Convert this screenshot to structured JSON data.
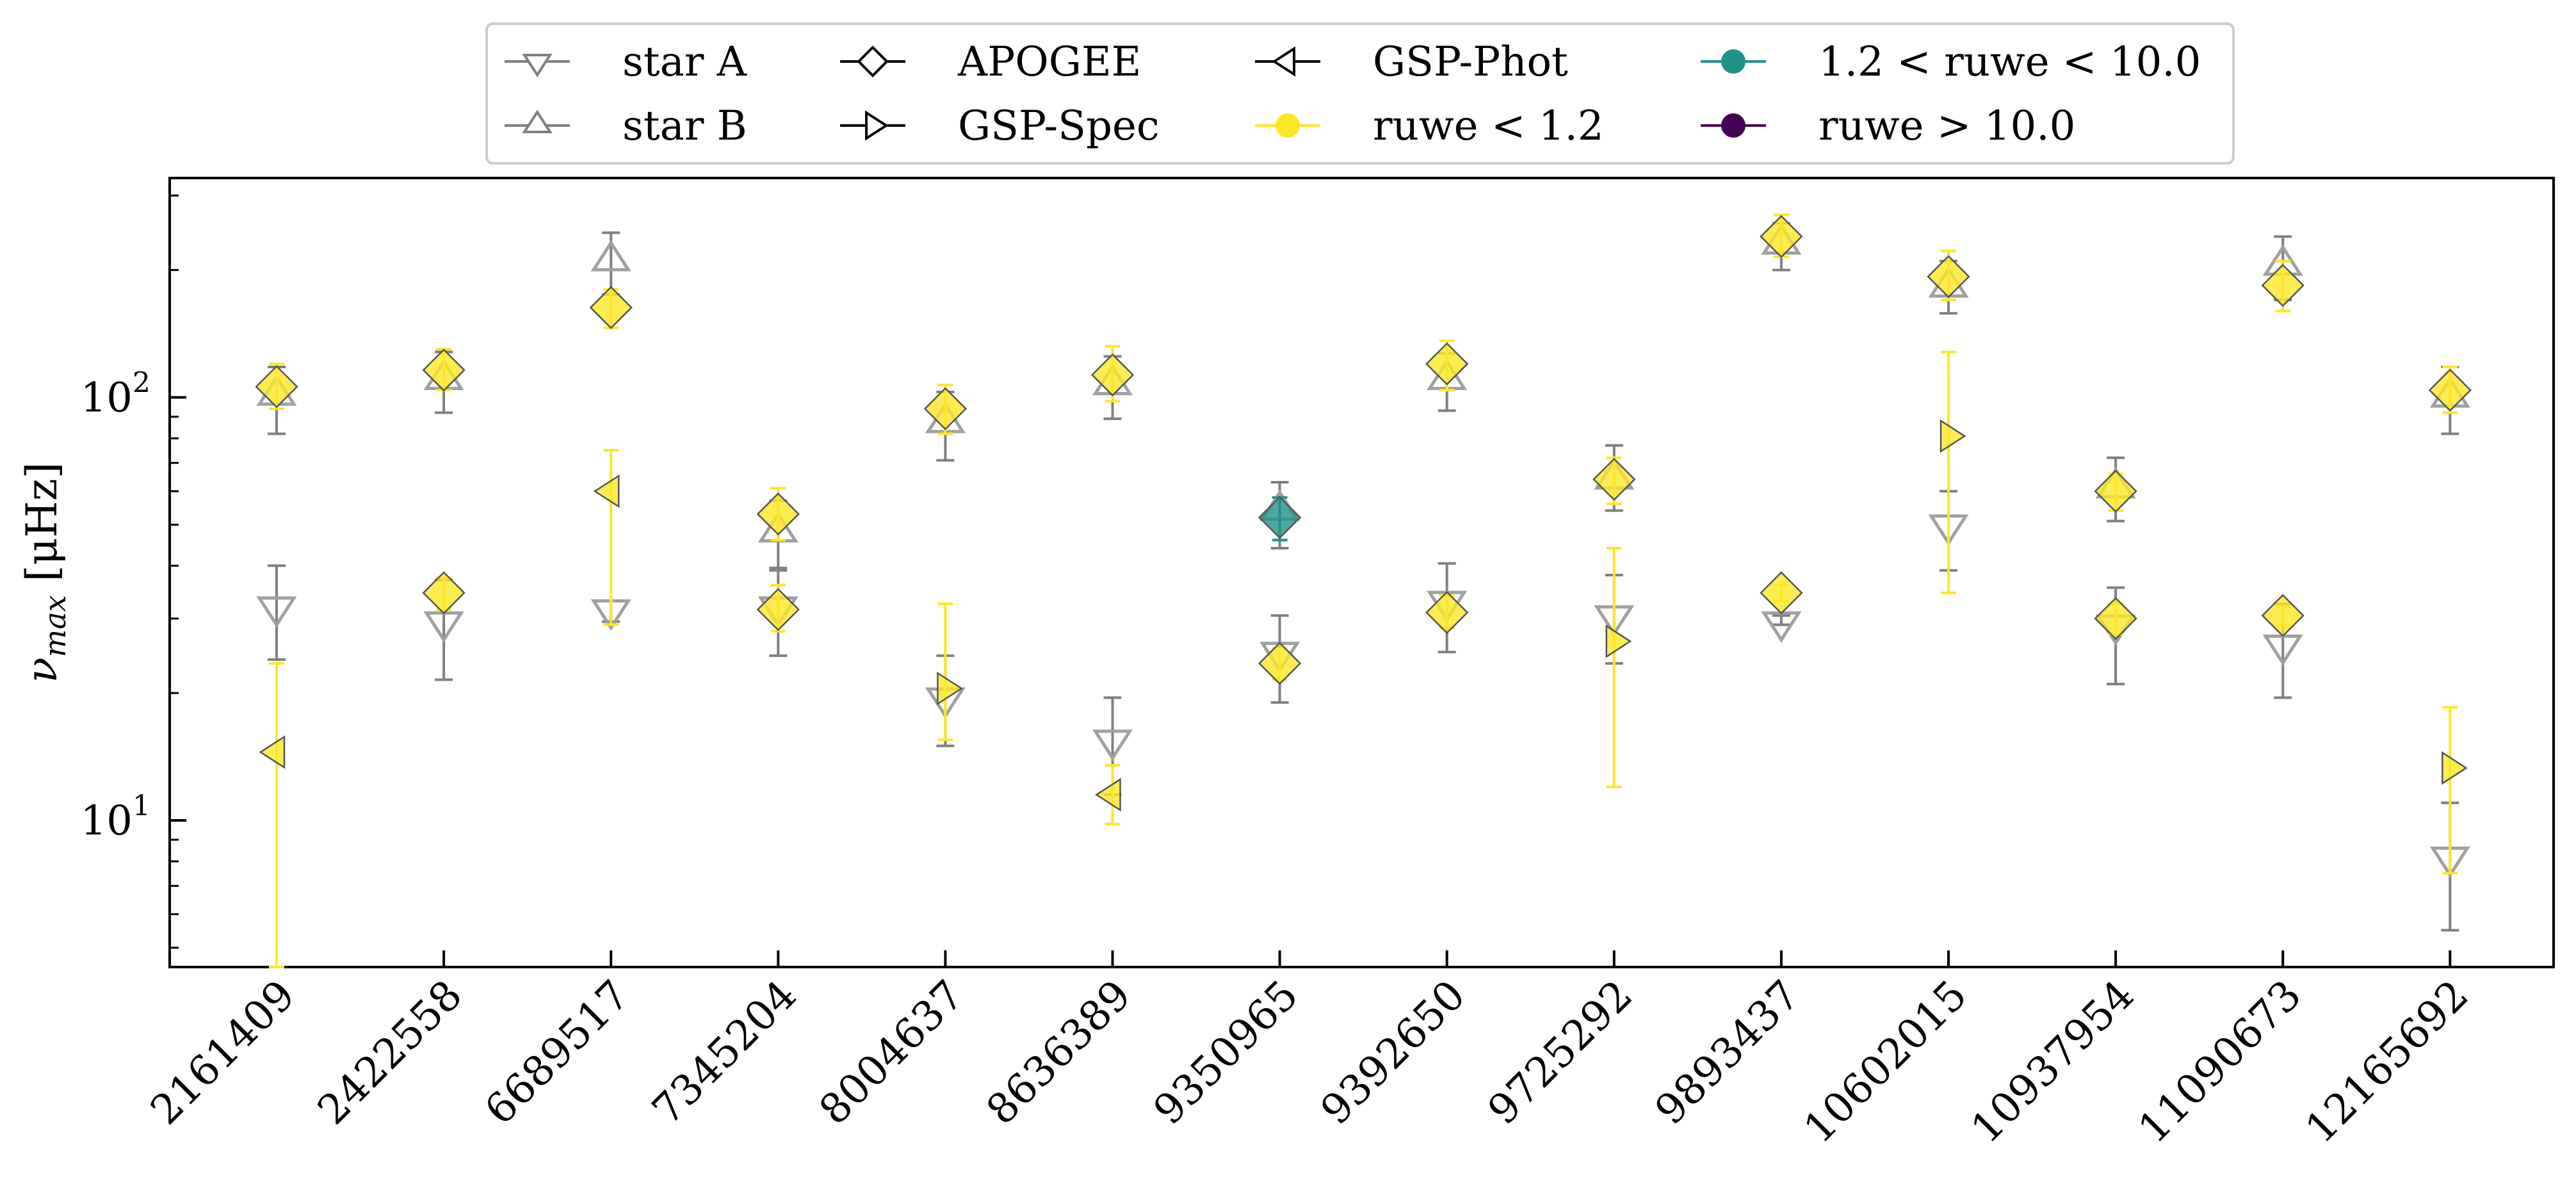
{
  "chart_data": {
    "type": "scatter",
    "ylabel_symbol": "ν",
    "ylabel_sub": "max",
    "ylabel_unit": " [μHz]",
    "yscale": "log",
    "ylim": [
      4.5,
      330
    ],
    "y_ticks": [
      {
        "value": 10,
        "base": "10",
        "exp": "1"
      },
      {
        "value": 100,
        "base": "10",
        "exp": "2"
      }
    ],
    "categories": [
      "2161409",
      "2422558",
      "6689517",
      "7345204",
      "8004637",
      "8636389",
      "9350965",
      "9392650",
      "9725292",
      "9893437",
      "10602015",
      "10937954",
      "11090673",
      "12165692"
    ],
    "legend": [
      {
        "label": "star A",
        "marker": "tri_down",
        "color": "#808080",
        "fill": "none"
      },
      {
        "label": "star B",
        "marker": "tri_up",
        "color": "#808080",
        "fill": "none"
      },
      {
        "label": "APOGEE",
        "marker": "diamond",
        "color": "#000000",
        "fill": "none"
      },
      {
        "label": "GSP-Spec",
        "marker": "tri_right",
        "color": "#000000",
        "fill": "none"
      },
      {
        "label": "GSP-Phot",
        "marker": "tri_left",
        "color": "#000000",
        "fill": "none"
      },
      {
        "label": "ruwe < 1.2",
        "marker": "circle",
        "color": "#fde725",
        "fill": "#fde725"
      },
      {
        "label": "1.2 < ruwe < 10.0",
        "marker": "circle",
        "color": "#21918c",
        "fill": "#21918c"
      },
      {
        "label": "ruwe > 10.0",
        "marker": "circle",
        "color": "#440154",
        "fill": "#440154"
      }
    ],
    "colors": {
      "ruwe_low": "#fde725",
      "ruwe_mid": "#21918c",
      "ruwe_high": "#440154",
      "seismic": "#808080"
    },
    "star_A": [
      {
        "x": 0,
        "y": 32,
        "lo": 24,
        "hi": 40
      },
      {
        "x": 1,
        "y": 29.5,
        "lo": 21.5,
        "hi": 37
      },
      {
        "x": 2,
        "y": 31.5,
        "lo": 29.5,
        "hi": 33
      },
      {
        "x": 3,
        "y": 32,
        "lo": 24.5,
        "hi": 39.5
      },
      {
        "x": 4,
        "y": 19.5,
        "lo": 15,
        "hi": 24.5
      },
      {
        "x": 5,
        "y": 15.5,
        "lo": 11.5,
        "hi": 19.5
      },
      {
        "x": 6,
        "y": 25,
        "lo": 19,
        "hi": 30.5
      },
      {
        "x": 7,
        "y": 33,
        "lo": 25,
        "hi": 40.5
      },
      {
        "x": 8,
        "y": 30.5,
        "lo": 23.5,
        "hi": 38
      },
      {
        "x": 9,
        "y": 29.5,
        "lo": 29,
        "hi": 30.5
      },
      {
        "x": 10,
        "y": 50,
        "lo": 39,
        "hi": 60
      },
      {
        "x": 11,
        "y": 29,
        "lo": 21,
        "hi": 35.5
      },
      {
        "x": 12,
        "y": 26,
        "lo": 19.5,
        "hi": 32.5
      },
      {
        "x": 13,
        "y": 8.2,
        "lo": 5.5,
        "hi": 11
      }
    ],
    "star_B": [
      {
        "x": 0,
        "y": 101,
        "lo": 82,
        "hi": 118
      },
      {
        "x": 1,
        "y": 110,
        "lo": 92,
        "hi": 128
      },
      {
        "x": 2,
        "y": 210,
        "lo": 175,
        "hi": 245
      },
      {
        "x": 3,
        "y": 48,
        "lo": 39,
        "hi": 57
      },
      {
        "x": 4,
        "y": 87,
        "lo": 71,
        "hi": 103
      },
      {
        "x": 5,
        "y": 107,
        "lo": 89,
        "hi": 125
      },
      {
        "x": 6,
        "y": 54,
        "lo": 44,
        "hi": 63
      },
      {
        "x": 7,
        "y": 110,
        "lo": 93,
        "hi": 127
      },
      {
        "x": 8,
        "y": 64,
        "lo": 54,
        "hi": 77
      },
      {
        "x": 9,
        "y": 230,
        "lo": 200,
        "hi": 258
      },
      {
        "x": 10,
        "y": 182,
        "lo": 158,
        "hi": 210
      },
      {
        "x": 11,
        "y": 61,
        "lo": 51,
        "hi": 72
      },
      {
        "x": 12,
        "y": 205,
        "lo": 170,
        "hi": 240
      },
      {
        "x": 13,
        "y": 100,
        "lo": 82,
        "hi": 118
      }
    ],
    "gaia": [
      {
        "x": 0,
        "marker": "diamond",
        "ruwe": "low",
        "y": 106,
        "lo": 94,
        "hi": 120
      },
      {
        "x": 0,
        "marker": "tri_left",
        "ruwe": "low",
        "y": 14.5,
        "lo": 4.5,
        "hi": 23.5
      },
      {
        "x": 1,
        "marker": "diamond",
        "ruwe": "low",
        "y": 116,
        "lo": 104,
        "hi": 130
      },
      {
        "x": 1,
        "marker": "diamond",
        "ruwe": "low",
        "y": 34.5,
        "lo": 31.5,
        "hi": 37.5
      },
      {
        "x": 2,
        "marker": "diamond",
        "ruwe": "low",
        "y": 163,
        "lo": 146,
        "hi": 180
      },
      {
        "x": 2,
        "marker": "tri_left",
        "ruwe": "low",
        "y": 60,
        "lo": 29,
        "hi": 75
      },
      {
        "x": 3,
        "marker": "diamond",
        "ruwe": "low",
        "y": 53,
        "lo": 46,
        "hi": 61
      },
      {
        "x": 3,
        "marker": "diamond",
        "ruwe": "low",
        "y": 31.5,
        "lo": 28,
        "hi": 36
      },
      {
        "x": 4,
        "marker": "diamond",
        "ruwe": "low",
        "y": 94,
        "lo": 82,
        "hi": 107
      },
      {
        "x": 4,
        "marker": "tri_right",
        "ruwe": "low",
        "y": 20.5,
        "lo": 15.5,
        "hi": 32.5
      },
      {
        "x": 5,
        "marker": "diamond",
        "ruwe": "low",
        "y": 113,
        "lo": 98,
        "hi": 132
      },
      {
        "x": 5,
        "marker": "tri_left",
        "ruwe": "low",
        "y": 11.5,
        "lo": 9.8,
        "hi": 13.5
      },
      {
        "x": 6,
        "marker": "diamond",
        "ruwe": "mid",
        "y": 52,
        "lo": 46,
        "hi": 58
      },
      {
        "x": 6,
        "marker": "diamond",
        "ruwe": "low",
        "y": 23.5,
        "lo": 21.5,
        "hi": 25.5
      },
      {
        "x": 7,
        "marker": "diamond",
        "ruwe": "low",
        "y": 120,
        "lo": 104,
        "hi": 136
      },
      {
        "x": 7,
        "marker": "diamond",
        "ruwe": "low",
        "y": 31,
        "lo": 28.5,
        "hi": 34
      },
      {
        "x": 8,
        "marker": "diamond",
        "ruwe": "low",
        "y": 64,
        "lo": 56,
        "hi": 72
      },
      {
        "x": 8,
        "marker": "tri_right",
        "ruwe": "low",
        "y": 26.5,
        "lo": 12,
        "hi": 44
      },
      {
        "x": 9,
        "marker": "diamond",
        "ruwe": "low",
        "y": 240,
        "lo": 215,
        "hi": 270
      },
      {
        "x": 9,
        "marker": "diamond",
        "ruwe": "low",
        "y": 34.5,
        "lo": 33,
        "hi": 36
      },
      {
        "x": 10,
        "marker": "diamond",
        "ruwe": "low",
        "y": 193,
        "lo": 170,
        "hi": 222
      },
      {
        "x": 10,
        "marker": "tri_right",
        "ruwe": "low",
        "y": 81,
        "lo": 34.5,
        "hi": 128
      },
      {
        "x": 11,
        "marker": "diamond",
        "ruwe": "low",
        "y": 60,
        "lo": 54,
        "hi": 66
      },
      {
        "x": 11,
        "marker": "diamond",
        "ruwe": "low",
        "y": 30,
        "lo": 27.5,
        "hi": 32.5
      },
      {
        "x": 12,
        "marker": "diamond",
        "ruwe": "low",
        "y": 184,
        "lo": 160,
        "hi": 210
      },
      {
        "x": 12,
        "marker": "diamond",
        "ruwe": "low",
        "y": 30.5,
        "lo": 29,
        "hi": 32
      },
      {
        "x": 13,
        "marker": "diamond",
        "ruwe": "low",
        "y": 104,
        "lo": 92,
        "hi": 118
      },
      {
        "x": 13,
        "marker": "tri_right",
        "ruwe": "low",
        "y": 13.3,
        "lo": 7.5,
        "hi": 18.5
      }
    ]
  }
}
